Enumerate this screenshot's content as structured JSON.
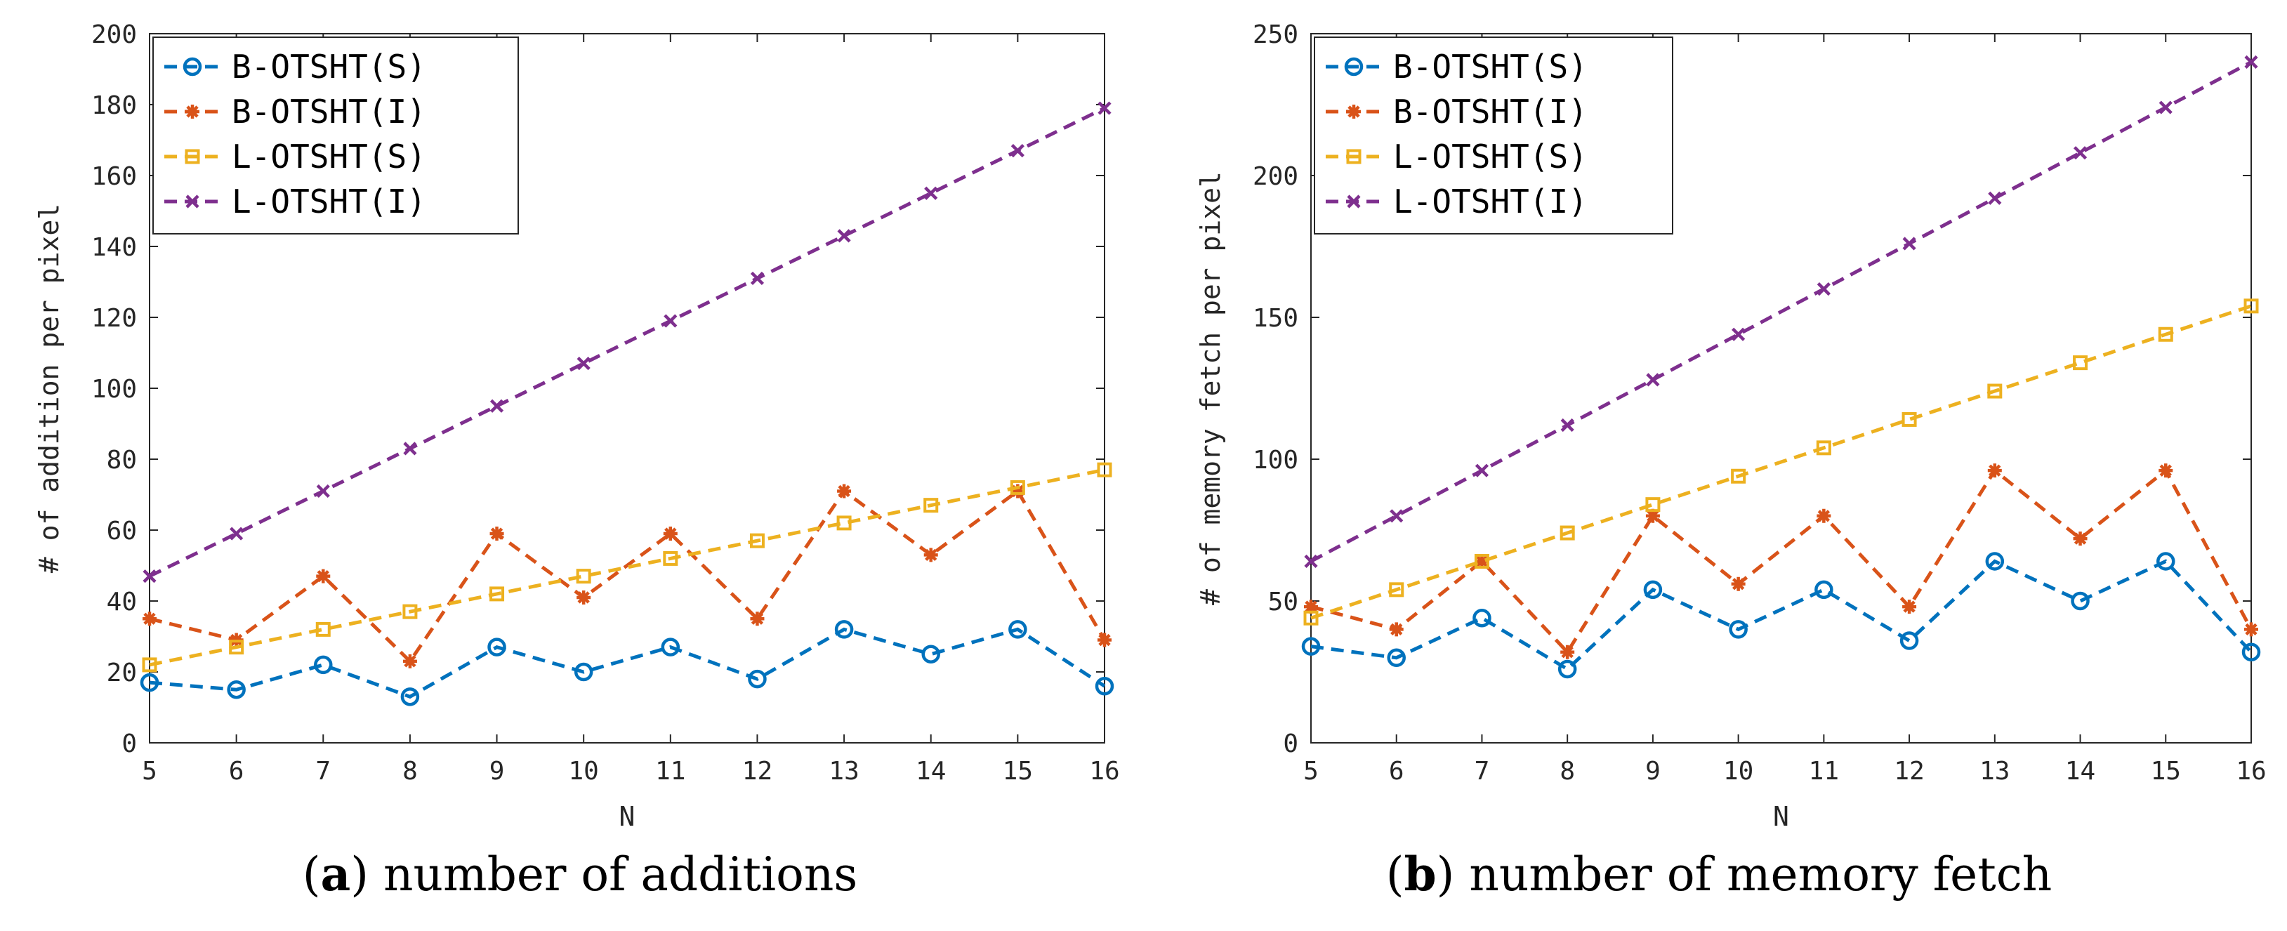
{
  "chart_data": [
    {
      "type": "line",
      "panel": "a",
      "caption_letter": "a",
      "caption_text": "number of additions",
      "xlabel": "N",
      "ylabel": "# of addition per pixel",
      "xlim": [
        5,
        16
      ],
      "ylim": [
        0,
        200
      ],
      "xticks": [
        5,
        6,
        7,
        8,
        9,
        10,
        11,
        12,
        13,
        14,
        15,
        16
      ],
      "yticks": [
        0,
        20,
        40,
        60,
        80,
        100,
        120,
        140,
        160,
        180,
        200
      ],
      "grid": false,
      "legend_position": "top-left",
      "x": [
        5,
        6,
        7,
        8,
        9,
        10,
        11,
        12,
        13,
        14,
        15,
        16
      ],
      "series": [
        {
          "name": "B-OTSHT(S)",
          "color": "#0072BD",
          "marker": "circle",
          "values": [
            17,
            15,
            22,
            13,
            27,
            20,
            27,
            18,
            32,
            25,
            32,
            16
          ]
        },
        {
          "name": "B-OTSHT(I)",
          "color": "#D95319",
          "marker": "asterisk",
          "values": [
            35,
            29,
            47,
            23,
            59,
            41,
            59,
            35,
            71,
            53,
            71,
            29
          ]
        },
        {
          "name": "L-OTSHT(S)",
          "color": "#EDB120",
          "marker": "square",
          "values": [
            22,
            27,
            32,
            37,
            42,
            47,
            52,
            57,
            62,
            67,
            72,
            77
          ]
        },
        {
          "name": "L-OTSHT(I)",
          "color": "#7E2F8E",
          "marker": "cross",
          "values": [
            47,
            59,
            71,
            83,
            95,
            107,
            119,
            131,
            143,
            155,
            167,
            179
          ]
        }
      ]
    },
    {
      "type": "line",
      "panel": "b",
      "caption_letter": "b",
      "caption_text": "number of memory fetch",
      "xlabel": "N",
      "ylabel": "# of memory fetch per pixel",
      "xlim": [
        5,
        16
      ],
      "ylim": [
        0,
        250
      ],
      "xticks": [
        5,
        6,
        7,
        8,
        9,
        10,
        11,
        12,
        13,
        14,
        15,
        16
      ],
      "yticks": [
        0,
        50,
        100,
        150,
        200,
        250
      ],
      "grid": false,
      "legend_position": "top-left",
      "x": [
        5,
        6,
        7,
        8,
        9,
        10,
        11,
        12,
        13,
        14,
        15,
        16
      ],
      "series": [
        {
          "name": "B-OTSHT(S)",
          "color": "#0072BD",
          "marker": "circle",
          "values": [
            34,
            30,
            44,
            26,
            54,
            40,
            54,
            36,
            64,
            50,
            64,
            32
          ]
        },
        {
          "name": "B-OTSHT(I)",
          "color": "#D95319",
          "marker": "asterisk",
          "values": [
            48,
            40,
            64,
            32,
            80,
            56,
            80,
            48,
            96,
            72,
            96,
            40
          ]
        },
        {
          "name": "L-OTSHT(S)",
          "color": "#EDB120",
          "marker": "square",
          "values": [
            44,
            54,
            64,
            74,
            84,
            94,
            104,
            114,
            124,
            134,
            144,
            154
          ]
        },
        {
          "name": "L-OTSHT(I)",
          "color": "#7E2F8E",
          "marker": "cross",
          "values": [
            64,
            80,
            96,
            112,
            128,
            144,
            160,
            176,
            192,
            208,
            224,
            240
          ]
        }
      ]
    }
  ]
}
